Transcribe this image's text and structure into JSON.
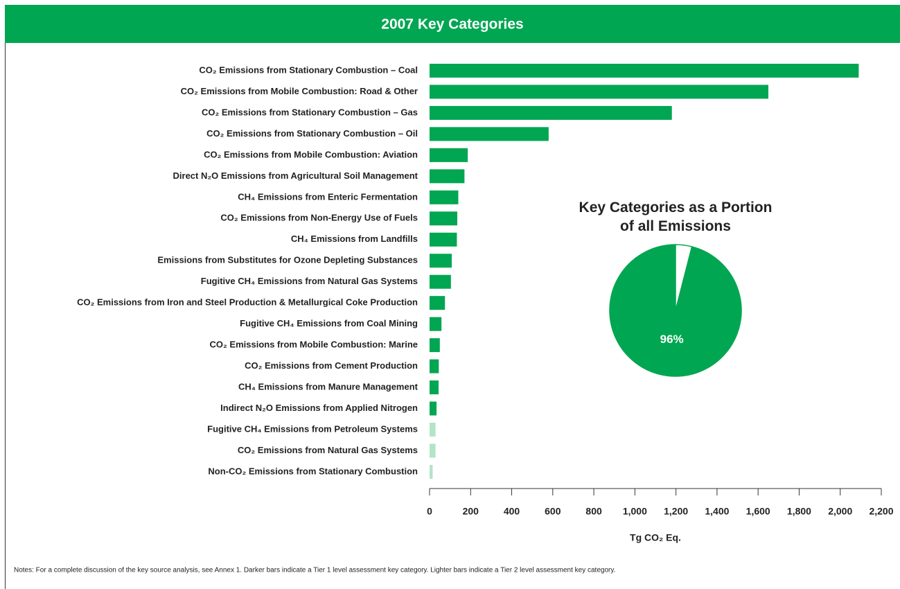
{
  "header": {
    "title": "2007 Key Categories"
  },
  "chart_data": [
    {
      "type": "barh",
      "categories": [
        "CO₂ Emissions from Stationary Combustion – Coal",
        "CO₂ Emissions from Mobile Combustion: Road & Other",
        "CO₂ Emissions from Stationary Combustion – Gas",
        "CO₂ Emissions from Stationary Combustion – Oil",
        "CO₂ Emissions from Mobile Combustion: Aviation",
        "Direct N₂O Emissions from Agricultural Soil Management",
        "CH₄ Emissions from Enteric Fermentation",
        "CO₂ Emissions from Non-Energy Use of Fuels",
        "CH₄ Emissions from Landfills",
        "Emissions from Substitutes for Ozone Depleting Substances",
        "Fugitive CH₄ Emissions from Natural Gas Systems",
        "CO₂ Emissions from Iron and Steel Production & Metallurgical Coke Production",
        "Fugitive CH₄ Emissions from Coal Mining",
        "CO₂ Emissions from Mobile Combustion: Marine",
        "CO₂ Emissions from Cement Production",
        "CH₄ Emissions from Manure Management",
        "Indirect N₂O Emissions from Applied Nitrogen",
        "Fugitive CH₄ Emissions from Petroleum Systems",
        "CO₂ Emissions from Natural Gas Systems",
        "Non-CO₂ Emissions from Stationary Combustion"
      ],
      "values": [
        2090,
        1650,
        1180,
        580,
        186,
        170,
        140,
        135,
        133,
        108,
        104,
        75,
        58,
        50,
        45,
        44,
        34,
        29,
        29,
        15
      ],
      "colors": [
        "#00a651",
        "#00a651",
        "#00a651",
        "#00a651",
        "#00a651",
        "#00a651",
        "#00a651",
        "#00a651",
        "#00a651",
        "#00a651",
        "#00a651",
        "#00a651",
        "#00a651",
        "#00a651",
        "#00a651",
        "#00a651",
        "#00a651",
        "#b3e4c8",
        "#b3e4c8",
        "#b3e4c8"
      ],
      "xlim": [
        0,
        2200
      ],
      "xticks": [
        0,
        200,
        400,
        600,
        800,
        {
          "value": 1000,
          "label": "1,000"
        },
        {
          "value": 1200,
          "label": "1,200"
        },
        {
          "value": 1400,
          "label": "1,400"
        },
        {
          "value": 1600,
          "label": "1,600"
        },
        {
          "value": 1800,
          "label": "1,800"
        },
        {
          "value": 2000,
          "label": "2,000"
        },
        {
          "value": 2200,
          "label": "2,200"
        }
      ],
      "xlabel": "Tg CO₂ Eq."
    },
    {
      "type": "pie",
      "title": "Key Categories as a Portion of all Emissions",
      "values": [
        96,
        4
      ],
      "value_labels": [
        "96%",
        null
      ],
      "colors": [
        "#00a651",
        "#ffffff"
      ]
    }
  ],
  "notes": "Notes: For a complete discussion of the key source analysis, see Annex 1. Darker bars indicate a Tier 1 level assessment key category. Lighter bars indicate a Tier 2 level assessment key category."
}
